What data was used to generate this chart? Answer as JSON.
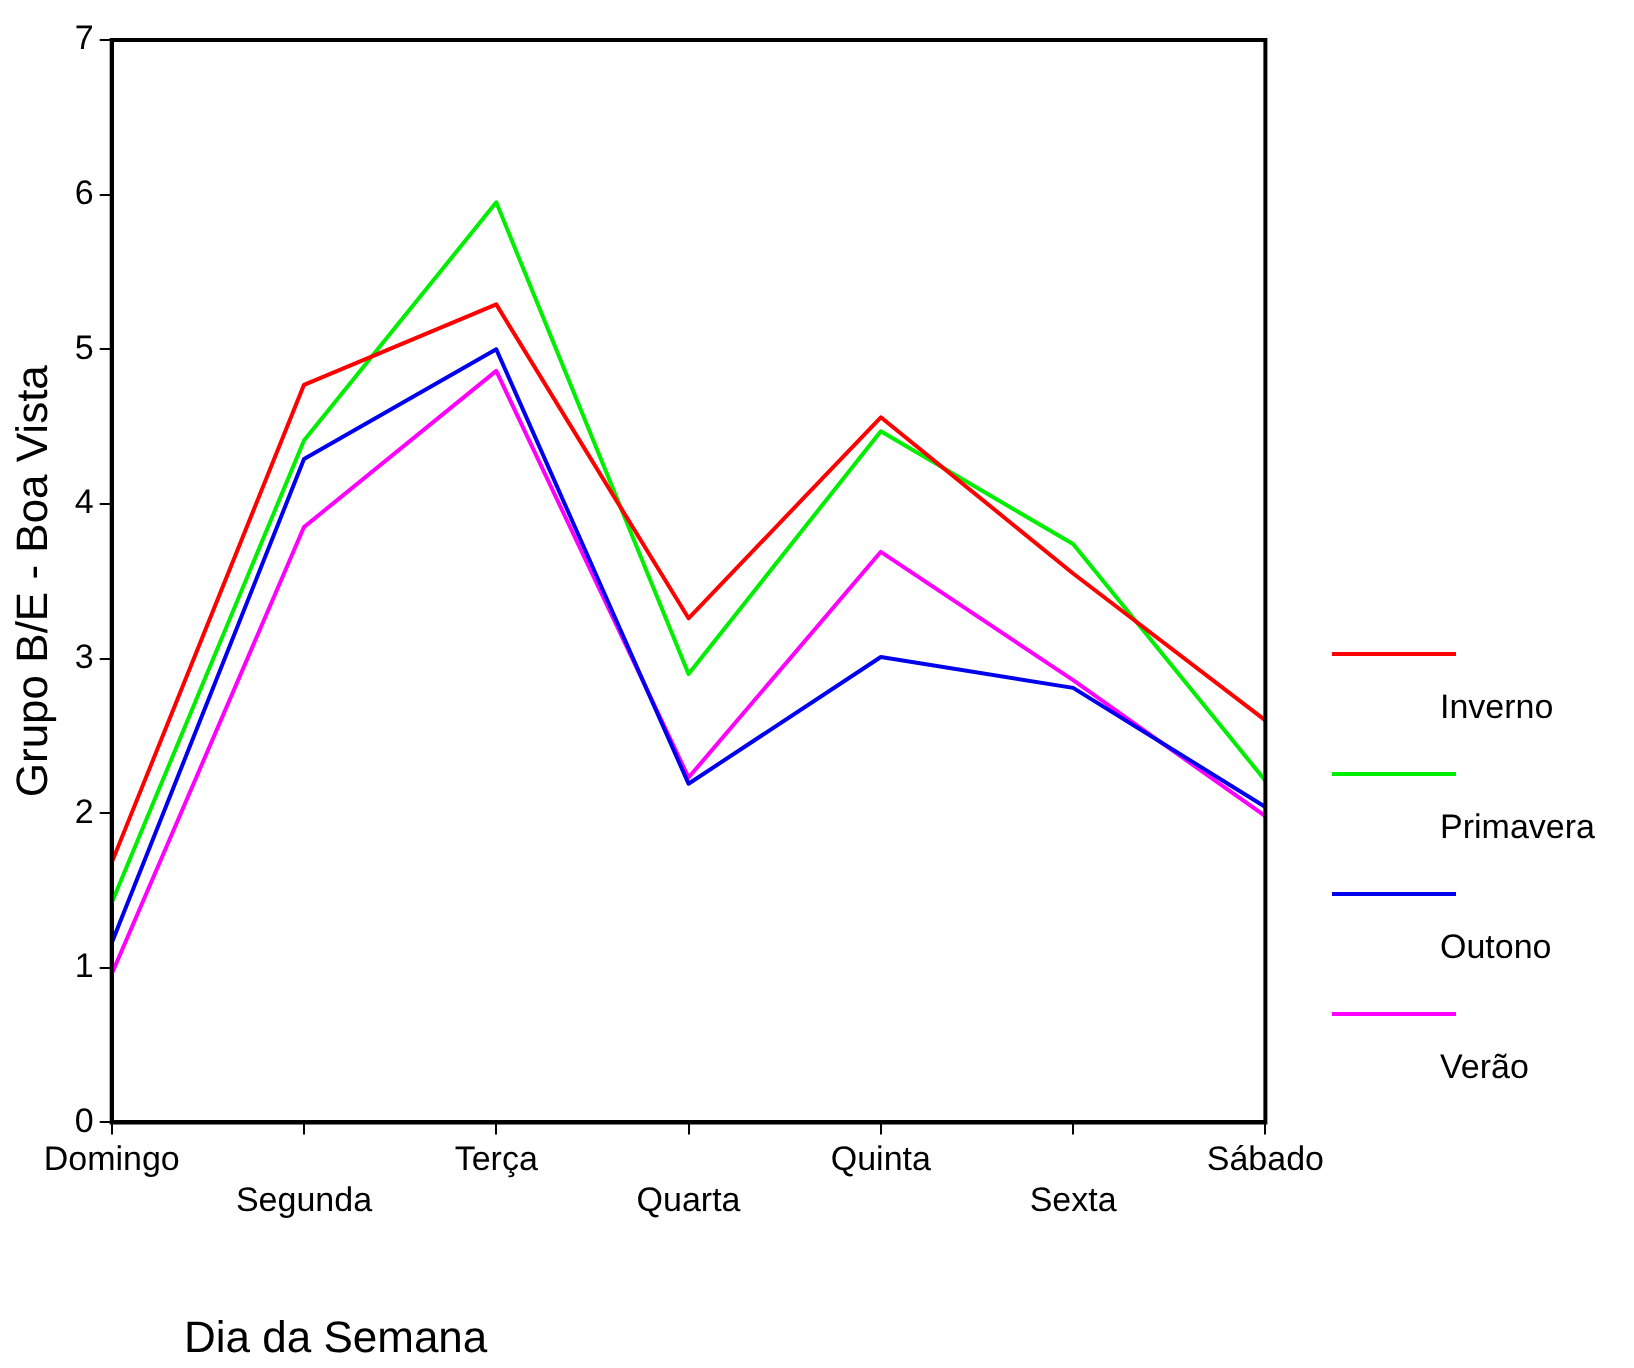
{
  "chart_data": {
    "type": "line",
    "xlabel": "Dia da Semana",
    "ylabel": "Grupo B/E - Boa Vista",
    "categories": [
      "Domingo",
      "Segunda",
      "Terça",
      "Quarta",
      "Quinta",
      "Sexta",
      "Sábado"
    ],
    "series": [
      {
        "name": "Inverno",
        "color": "#ff0000",
        "values": [
          1.68,
          4.77,
          5.29,
          3.26,
          4.56,
          3.55,
          2.6
        ]
      },
      {
        "name": "Primavera",
        "color": "#00ee00",
        "values": [
          1.42,
          4.41,
          5.95,
          2.9,
          4.47,
          3.74,
          2.21
        ]
      },
      {
        "name": "Outono",
        "color": "#0000ee",
        "values": [
          1.16,
          4.29,
          5.0,
          2.19,
          3.01,
          2.81,
          2.04
        ]
      },
      {
        "name": "Verão",
        "color": "#ff00ff",
        "values": [
          0.96,
          3.85,
          4.86,
          2.23,
          3.69,
          2.86,
          1.98
        ]
      }
    ],
    "ylim": [
      0,
      7
    ],
    "yticks": [
      0,
      1,
      2,
      3,
      4,
      5,
      6,
      7
    ],
    "grid": false,
    "legend": "right",
    "marker": "none",
    "line_style": "solid"
  }
}
